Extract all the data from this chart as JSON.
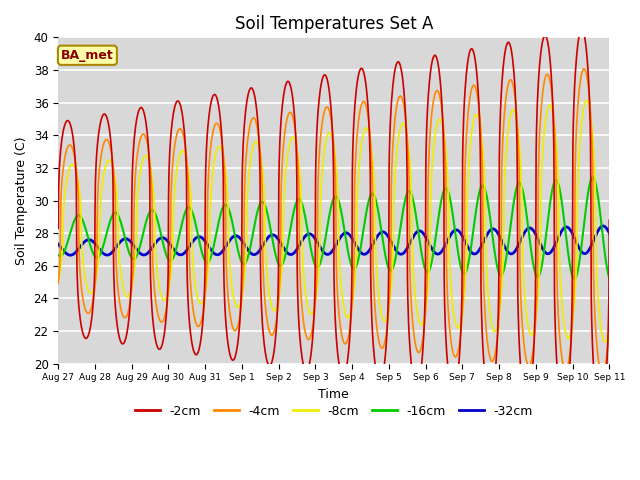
{
  "title": "Soil Temperatures Set A",
  "xlabel": "Time",
  "ylabel": "Soil Temperature (C)",
  "ylim": [
    20,
    40
  ],
  "annotation": "BA_met",
  "legend_labels": [
    "-2cm",
    "-4cm",
    "-8cm",
    "-16cm",
    "-32cm"
  ],
  "legend_colors": [
    "#cc0000",
    "#ff8800",
    "#eeee00",
    "#00cc00",
    "#0000cc"
  ],
  "bg_color": "#d8d8d8",
  "n_points": 1500,
  "start_day": 0,
  "end_day": 15,
  "xtick_days": [
    0,
    1,
    2,
    3,
    4,
    5,
    6,
    7,
    8,
    9,
    10,
    11,
    12,
    13,
    14,
    15
  ],
  "xtick_labels": [
    "Aug 27",
    "Aug 28",
    "Aug 29",
    "Aug 30",
    "Aug 31",
    "Sep 1",
    "Sep 2",
    "Sep 3",
    "Sep 4",
    "Sep 5",
    "Sep 6",
    "Sep 7",
    "Sep 8",
    "Sep 9",
    "Sep 10",
    "Sep 11"
  ],
  "yticks": [
    20,
    22,
    24,
    26,
    28,
    30,
    32,
    34,
    36,
    38,
    40
  ],
  "series": {
    "-2cm": {
      "mean": 28.3,
      "amp_start": 6.5,
      "amp_end": 12.0,
      "phase_lag": 0.0,
      "sharpness": 3.0
    },
    "-4cm": {
      "mean": 28.3,
      "amp_start": 5.0,
      "amp_end": 9.5,
      "phase_lag": 0.06,
      "sharpness": 2.5
    },
    "-8cm": {
      "mean": 28.3,
      "amp_start": 3.8,
      "amp_end": 7.5,
      "phase_lag": 0.13,
      "sharpness": 2.0
    },
    "-16cm": {
      "mean": 27.8,
      "amp_start": 1.2,
      "amp_end": 3.2,
      "phase_lag": 0.3,
      "sharpness": 1.0
    },
    "-32cm": {
      "mean": 27.1,
      "amp_start": 0.45,
      "amp_end": 0.85,
      "phase_lag": 0.58,
      "sharpness": 1.0
    }
  },
  "mean_trend": {
    "start": 0.0,
    "end": 0.5
  }
}
